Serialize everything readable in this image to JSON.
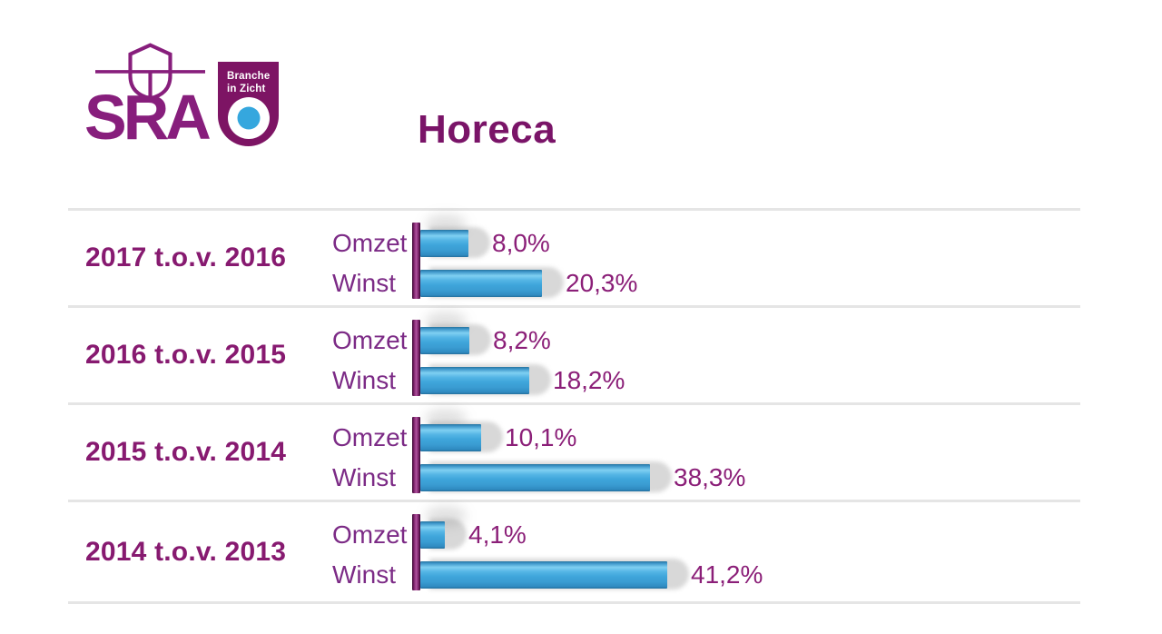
{
  "brand": {
    "logo_word": "SRA",
    "logo_icon": "sra-shield-icon",
    "badge": {
      "line1": "Branche",
      "line2": "in Zicht",
      "icon": "bullseye-dot-icon"
    }
  },
  "title": "Horeca",
  "chart_data": {
    "type": "bar",
    "orientation": "horizontal",
    "title": "Horeca",
    "series_labels": [
      "Omzet",
      "Winst"
    ],
    "groups": [
      {
        "category": "2017 t.o.v. 2016",
        "values": [
          8.0,
          20.3
        ],
        "value_labels": [
          "8,0%",
          "20,3%"
        ]
      },
      {
        "category": "2016 t.o.v. 2015",
        "values": [
          8.2,
          18.2
        ],
        "value_labels": [
          "8,2%",
          "18,2%"
        ]
      },
      {
        "category": "2015 t.o.v. 2014",
        "values": [
          10.1,
          38.3
        ],
        "value_labels": [
          "10,1%",
          "38,3%"
        ]
      },
      {
        "category": "2014 t.o.v. 2013",
        "values": [
          4.1,
          41.2
        ],
        "value_labels": [
          "4,1%",
          "41,2%"
        ]
      }
    ],
    "xlim": [
      0,
      42
    ],
    "unit": "%",
    "grid": false,
    "legend": false
  },
  "colors": {
    "brand_purple": "#871e7c",
    "badge_background": "#7d1464",
    "badge_dot_blue": "#35a7de",
    "title_purple": "#7a1468",
    "group_label_purple": "#871a70",
    "series_label_purple": "#7c2b86",
    "value_purple": "#8b1f78",
    "bar_blue": "#3fa6db",
    "bar_highlight": "#7fd0f2",
    "axis_magenta": "#b0549f",
    "separator_gray": "#e5e5e5"
  }
}
